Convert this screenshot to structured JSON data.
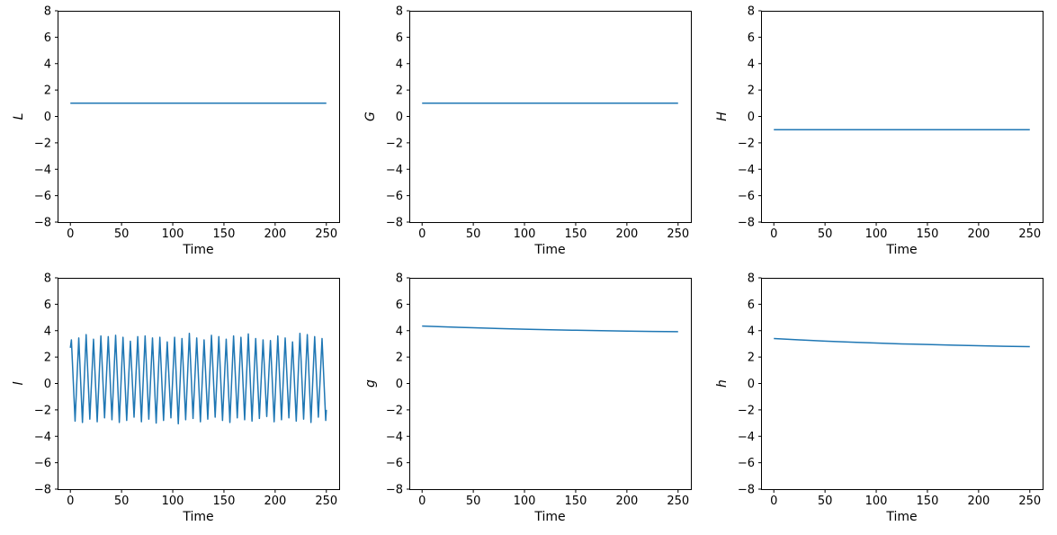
{
  "figure": {
    "background": "#ffffff",
    "text_color": "#000000",
    "spine_color": "#000000",
    "line_color": "#1f77b4",
    "rows": 2,
    "cols": 3
  },
  "chart_data": [
    {
      "type": "line",
      "title": "",
      "xlabel": "Time",
      "ylabel": "L",
      "xlim": [
        -12.5,
        262.5
      ],
      "ylim": [
        -8,
        8
      ],
      "x_ticks": [
        0,
        50,
        100,
        150,
        200,
        250
      ],
      "y_ticks": [
        -8,
        -6,
        -4,
        -2,
        0,
        2,
        4,
        6,
        8
      ],
      "grid": false,
      "legend": null,
      "series": [
        {
          "name": "L",
          "color": "#1f77b4",
          "x": [
            0,
            250
          ],
          "y": [
            1.0,
            1.0
          ]
        }
      ]
    },
    {
      "type": "line",
      "title": "",
      "xlabel": "Time",
      "ylabel": "G",
      "xlim": [
        -12.5,
        262.5
      ],
      "ylim": [
        -8,
        8
      ],
      "x_ticks": [
        0,
        50,
        100,
        150,
        200,
        250
      ],
      "y_ticks": [
        -8,
        -6,
        -4,
        -2,
        0,
        2,
        4,
        6,
        8
      ],
      "grid": false,
      "legend": null,
      "series": [
        {
          "name": "G",
          "color": "#1f77b4",
          "x": [
            0,
            250
          ],
          "y": [
            1.0,
            1.0
          ]
        }
      ]
    },
    {
      "type": "line",
      "title": "",
      "xlabel": "Time",
      "ylabel": "H",
      "xlim": [
        -12.5,
        262.5
      ],
      "ylim": [
        -8,
        8
      ],
      "x_ticks": [
        0,
        50,
        100,
        150,
        200,
        250
      ],
      "y_ticks": [
        -8,
        -6,
        -4,
        -2,
        0,
        2,
        4,
        6,
        8
      ],
      "grid": false,
      "legend": null,
      "series": [
        {
          "name": "H",
          "color": "#1f77b4",
          "x": [
            0,
            250
          ],
          "y": [
            -1.0,
            -1.0
          ]
        }
      ]
    },
    {
      "type": "line",
      "title": "",
      "xlabel": "Time",
      "ylabel": "l",
      "xlim": [
        -12.5,
        262.5
      ],
      "ylim": [
        -8,
        8
      ],
      "x_ticks": [
        0,
        50,
        100,
        150,
        200,
        250
      ],
      "y_ticks": [
        -8,
        -6,
        -4,
        -2,
        0,
        2,
        4,
        6,
        8
      ],
      "grid": false,
      "legend": null,
      "series": [
        {
          "name": "l",
          "color": "#1f77b4",
          "x": [
            0,
            1.0,
            4.6,
            8.2,
            11.8,
            15.4,
            19.0,
            22.6,
            26.2,
            29.8,
            33.4,
            37.0,
            40.6,
            44.2,
            47.8,
            51.4,
            55.0,
            58.6,
            62.2,
            65.8,
            69.4,
            73.0,
            76.6,
            80.2,
            83.8,
            87.4,
            91.0,
            94.6,
            98.2,
            101.8,
            105.4,
            109.0,
            112.6,
            116.2,
            119.8,
            123.4,
            127.0,
            130.6,
            134.2,
            137.8,
            141.4,
            145.0,
            148.6,
            152.2,
            155.8,
            159.4,
            163.0,
            166.6,
            170.2,
            173.8,
            177.4,
            181.0,
            184.6,
            188.2,
            191.8,
            195.4,
            199.0,
            202.6,
            206.2,
            209.8,
            213.4,
            217.0,
            220.6,
            224.2,
            227.8,
            231.4,
            235.0,
            238.6,
            242.2,
            245.8,
            249.4,
            250
          ],
          "y": [
            2.7,
            3.3,
            -2.85,
            3.45,
            -2.95,
            3.7,
            -2.7,
            3.35,
            -2.9,
            3.6,
            -2.6,
            3.55,
            -2.75,
            3.65,
            -2.95,
            3.5,
            -2.8,
            3.2,
            -2.55,
            3.55,
            -2.9,
            3.6,
            -2.7,
            3.45,
            -3.0,
            3.5,
            -2.8,
            3.15,
            -2.6,
            3.5,
            -3.05,
            3.4,
            -2.75,
            3.8,
            -2.65,
            3.45,
            -2.9,
            3.3,
            -2.7,
            3.65,
            -2.55,
            3.55,
            -2.8,
            3.35,
            -2.95,
            3.6,
            -2.6,
            3.5,
            -2.75,
            3.75,
            -2.85,
            3.4,
            -2.65,
            3.3,
            -2.5,
            3.25,
            -2.9,
            3.6,
            -2.75,
            3.45,
            -2.6,
            3.15,
            -2.85,
            3.8,
            -2.7,
            3.7,
            -2.95,
            3.55,
            -2.55,
            3.4,
            -2.8,
            -2.0
          ]
        }
      ]
    },
    {
      "type": "line",
      "title": "",
      "xlabel": "Time",
      "ylabel": "g",
      "xlim": [
        -12.5,
        262.5
      ],
      "ylim": [
        -8,
        8
      ],
      "x_ticks": [
        0,
        50,
        100,
        150,
        200,
        250
      ],
      "y_ticks": [
        -8,
        -6,
        -4,
        -2,
        0,
        2,
        4,
        6,
        8
      ],
      "grid": false,
      "legend": null,
      "series": [
        {
          "name": "g",
          "color": "#1f77b4",
          "x": [
            0,
            25,
            50,
            75,
            100,
            125,
            150,
            175,
            200,
            225,
            250
          ],
          "y": [
            4.35,
            4.28,
            4.22,
            4.16,
            4.11,
            4.07,
            4.03,
            4.0,
            3.97,
            3.94,
            3.92
          ]
        }
      ]
    },
    {
      "type": "line",
      "title": "",
      "xlabel": "Time",
      "ylabel": "h",
      "xlim": [
        -12.5,
        262.5
      ],
      "ylim": [
        -8,
        8
      ],
      "x_ticks": [
        0,
        50,
        100,
        150,
        200,
        250
      ],
      "y_ticks": [
        -8,
        -6,
        -4,
        -2,
        0,
        2,
        4,
        6,
        8
      ],
      "grid": false,
      "legend": null,
      "series": [
        {
          "name": "h",
          "color": "#1f77b4",
          "x": [
            0,
            25,
            50,
            75,
            100,
            125,
            150,
            175,
            200,
            225,
            250
          ],
          "y": [
            3.4,
            3.3,
            3.21,
            3.13,
            3.06,
            3.0,
            2.95,
            2.9,
            2.86,
            2.82,
            2.79
          ]
        }
      ]
    }
  ]
}
